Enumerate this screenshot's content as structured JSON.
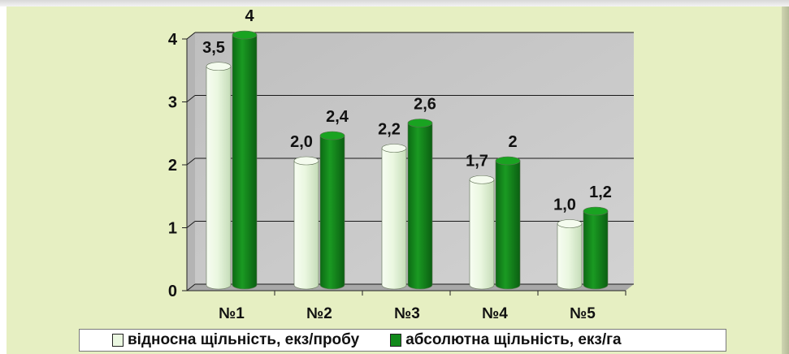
{
  "chart_data": {
    "type": "bar",
    "title": "",
    "xlabel": "",
    "ylabel": "",
    "ylim": [
      0,
      4
    ],
    "yticks": [
      "0",
      "1",
      "2",
      "3",
      "4"
    ],
    "grid": true,
    "legend_position": "bottom",
    "categories": [
      "№1",
      "№2",
      "№3",
      "№4",
      "№5"
    ],
    "series": [
      {
        "name": "відносна щільність, екз/пробу",
        "color": "#eaf7e0",
        "values": [
          3.5,
          2.0,
          2.2,
          1.7,
          1.0
        ],
        "labels": [
          "3,5",
          "2,0",
          "2,2",
          "1,7",
          "1,0"
        ]
      },
      {
        "name": "абсолютна щільність, екз/га",
        "color": "#11891a",
        "values": [
          4,
          2.4,
          2.6,
          2,
          1.2
        ],
        "labels": [
          "4",
          "2,4",
          "2,6",
          "2",
          "1,2"
        ]
      }
    ]
  },
  "legend": {
    "item1": "відносна щільність, екз/пробу",
    "item2": "абсолютна щільність, екз/га"
  }
}
